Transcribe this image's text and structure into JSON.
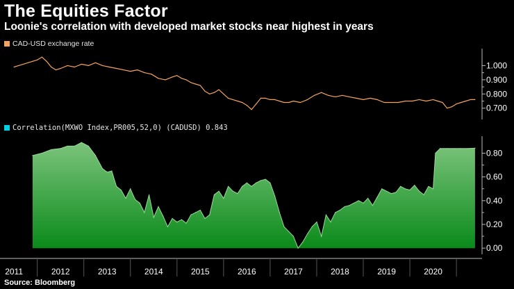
{
  "header": {
    "title": "The Equities Factor",
    "subtitle": "Loonie's correlation with developed market stocks near highest in years"
  },
  "source": "Source: Bloomberg",
  "colors": {
    "background": "#000000",
    "fx_line": "#f4a460",
    "fx_legend": "#f4a460",
    "corr_legend": "#00d0e0",
    "corr_fill_top": "#7cc47c",
    "corr_fill_bottom": "#0a8a1a",
    "axis": "#bbbbbb",
    "grid": "#555555"
  },
  "chart_data": [
    {
      "type": "line",
      "title": "CAD-USD exchange rate",
      "legend": "CAD-USD exchange rate",
      "ylim": [
        0.63,
        1.1
      ],
      "yticks": [
        0.7,
        0.8,
        0.9,
        1.0
      ],
      "ytick_labels": [
        "0.700",
        "0.800",
        "0.900",
        "1.000"
      ],
      "x": [
        2011.0,
        2011.1,
        2011.2,
        2011.3,
        2011.4,
        2011.5,
        2011.6,
        2011.7,
        2011.8,
        2011.9,
        2012.0,
        2012.15,
        2012.3,
        2012.45,
        2012.6,
        2012.75,
        2012.9,
        2013.05,
        2013.2,
        2013.35,
        2013.5,
        2013.65,
        2013.8,
        2013.95,
        2014.1,
        2014.25,
        2014.4,
        2014.5,
        2014.6,
        2014.7,
        2014.8,
        2014.9,
        2015.0,
        2015.1,
        2015.2,
        2015.3,
        2015.4,
        2015.5,
        2015.6,
        2015.7,
        2015.8,
        2015.9,
        2016.0,
        2016.1,
        2016.2,
        2016.3,
        2016.4,
        2016.5,
        2016.6,
        2016.7,
        2016.8,
        2016.9,
        2017.0,
        2017.15,
        2017.3,
        2017.45,
        2017.6,
        2017.75,
        2017.9,
        2018.05,
        2018.2,
        2018.35,
        2018.5,
        2018.65,
        2018.8,
        2018.95,
        2019.1,
        2019.25,
        2019.4,
        2019.55,
        2019.7,
        2019.85,
        2020.0,
        2020.1,
        2020.2,
        2020.3,
        2020.4,
        2020.5,
        2020.6,
        2020.7,
        2020.8,
        2020.9
      ],
      "values": [
        0.99,
        1.0,
        1.01,
        1.02,
        1.03,
        1.04,
        1.06,
        1.03,
        0.99,
        0.97,
        0.98,
        1.0,
        0.99,
        1.01,
        1.0,
        1.02,
        1.0,
        0.99,
        0.98,
        0.97,
        0.96,
        0.97,
        0.95,
        0.94,
        0.91,
        0.9,
        0.92,
        0.93,
        0.91,
        0.9,
        0.88,
        0.87,
        0.86,
        0.82,
        0.8,
        0.81,
        0.83,
        0.8,
        0.77,
        0.76,
        0.75,
        0.74,
        0.72,
        0.69,
        0.73,
        0.77,
        0.77,
        0.76,
        0.76,
        0.75,
        0.74,
        0.74,
        0.75,
        0.74,
        0.76,
        0.79,
        0.81,
        0.79,
        0.78,
        0.79,
        0.78,
        0.77,
        0.76,
        0.77,
        0.76,
        0.74,
        0.74,
        0.74,
        0.75,
        0.75,
        0.76,
        0.75,
        0.76,
        0.75,
        0.74,
        0.7,
        0.71,
        0.73,
        0.74,
        0.75,
        0.76,
        0.76
      ]
    },
    {
      "type": "area",
      "title": "Correlation(MXWO Index,PR005,52,0) (CADUSD) 0.843",
      "legend": "Correlation(MXWO Index,PR005,52,0) (CADUSD) 0.843",
      "ylim": [
        -0.04,
        0.92
      ],
      "yticks": [
        0.0,
        0.2,
        0.4,
        0.6,
        0.8
      ],
      "ytick_labels": [
        "0.00",
        "0.20",
        "0.40",
        "0.60",
        "0.80"
      ],
      "x": [
        2011.4,
        2011.6,
        2011.8,
        2012.0,
        2012.15,
        2012.3,
        2012.45,
        2012.6,
        2012.75,
        2012.9,
        2013.0,
        2013.1,
        2013.2,
        2013.3,
        2013.4,
        2013.5,
        2013.6,
        2013.7,
        2013.8,
        2013.9,
        2014.0,
        2014.1,
        2014.2,
        2014.3,
        2014.4,
        2014.5,
        2014.6,
        2014.7,
        2014.8,
        2014.9,
        2015.0,
        2015.1,
        2015.2,
        2015.3,
        2015.4,
        2015.5,
        2015.6,
        2015.7,
        2015.8,
        2015.9,
        2016.0,
        2016.1,
        2016.2,
        2016.3,
        2016.4,
        2016.5,
        2016.6,
        2016.7,
        2016.8,
        2016.9,
        2017.0,
        2017.1,
        2017.2,
        2017.3,
        2017.4,
        2017.5,
        2017.6,
        2017.7,
        2017.8,
        2017.9,
        2018.0,
        2018.1,
        2018.2,
        2018.3,
        2018.4,
        2018.5,
        2018.6,
        2018.7,
        2018.8,
        2018.9,
        2019.0,
        2019.1,
        2019.2,
        2019.3,
        2019.4,
        2019.5,
        2019.6,
        2019.7,
        2019.8,
        2019.9,
        2020.0,
        2020.05,
        2020.15,
        2020.3,
        2020.45,
        2020.6,
        2020.75,
        2020.9
      ],
      "values": [
        0.78,
        0.8,
        0.83,
        0.84,
        0.86,
        0.86,
        0.89,
        0.86,
        0.78,
        0.67,
        0.64,
        0.65,
        0.52,
        0.49,
        0.42,
        0.5,
        0.41,
        0.38,
        0.3,
        0.45,
        0.26,
        0.35,
        0.27,
        0.18,
        0.25,
        0.22,
        0.24,
        0.21,
        0.28,
        0.3,
        0.32,
        0.25,
        0.28,
        0.45,
        0.48,
        0.42,
        0.52,
        0.48,
        0.46,
        0.52,
        0.55,
        0.52,
        0.55,
        0.57,
        0.58,
        0.55,
        0.44,
        0.3,
        0.18,
        0.14,
        0.1,
        0.0,
        0.05,
        0.12,
        0.18,
        0.22,
        0.1,
        0.28,
        0.22,
        0.3,
        0.32,
        0.35,
        0.36,
        0.38,
        0.4,
        0.38,
        0.42,
        0.36,
        0.43,
        0.5,
        0.48,
        0.46,
        0.47,
        0.52,
        0.5,
        0.49,
        0.53,
        0.48,
        0.45,
        0.52,
        0.5,
        0.8,
        0.84,
        0.84,
        0.84,
        0.84,
        0.84,
        0.843
      ]
    }
  ],
  "x_axis": {
    "range": [
      2010.7,
      2021.05
    ],
    "year_labels": [
      "2011",
      "2012",
      "2013",
      "2014",
      "2015",
      "2016",
      "2017",
      "2018",
      "2019",
      "2020"
    ],
    "year_positions": [
      2011.0,
      2012.0,
      2013.0,
      2014.0,
      2015.0,
      2016.0,
      2017.0,
      2018.0,
      2019.0,
      2020.0
    ],
    "boundaries": [
      2010.5,
      2011.5,
      2012.5,
      2013.5,
      2014.5,
      2015.5,
      2016.5,
      2017.5,
      2018.5,
      2019.5,
      2020.5
    ]
  }
}
